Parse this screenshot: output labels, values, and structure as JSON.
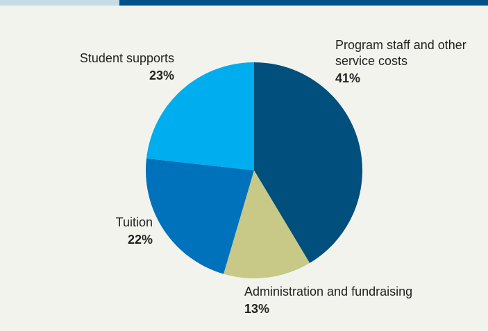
{
  "chart_data": {
    "type": "pie",
    "categories": [
      "Program staff and other service costs",
      "Administration and fundraising",
      "Tuition",
      "Student supports"
    ],
    "values": [
      41,
      13,
      22,
      23
    ],
    "value_labels": [
      "41%",
      "13%",
      "22%",
      "23%"
    ],
    "colors": [
      "#004f7c",
      "#c8c987",
      "#0072bc",
      "#00adee"
    ]
  }
}
